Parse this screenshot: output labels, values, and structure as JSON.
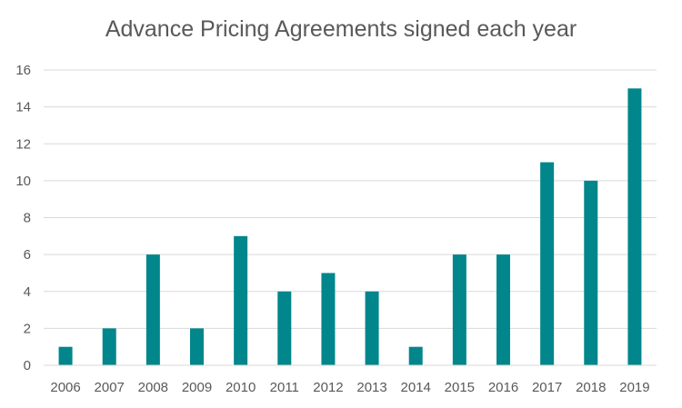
{
  "chart_data": {
    "type": "bar",
    "title": "Advance Pricing Agreements signed each year",
    "categories": [
      "2006",
      "2007",
      "2008",
      "2009",
      "2010",
      "2011",
      "2012",
      "2013",
      "2014",
      "2015",
      "2016",
      "2017",
      "2018",
      "2019"
    ],
    "values": [
      1,
      2,
      6,
      2,
      7,
      4,
      5,
      4,
      1,
      6,
      6,
      11,
      10,
      15
    ],
    "xlabel": "",
    "ylabel": "",
    "ylim": [
      0,
      16
    ],
    "yticks": [
      0,
      2,
      4,
      6,
      8,
      10,
      12,
      14,
      16
    ],
    "grid": true,
    "legend": "none",
    "bar_color": "#00868B",
    "grid_color": "#D9D9D9"
  }
}
